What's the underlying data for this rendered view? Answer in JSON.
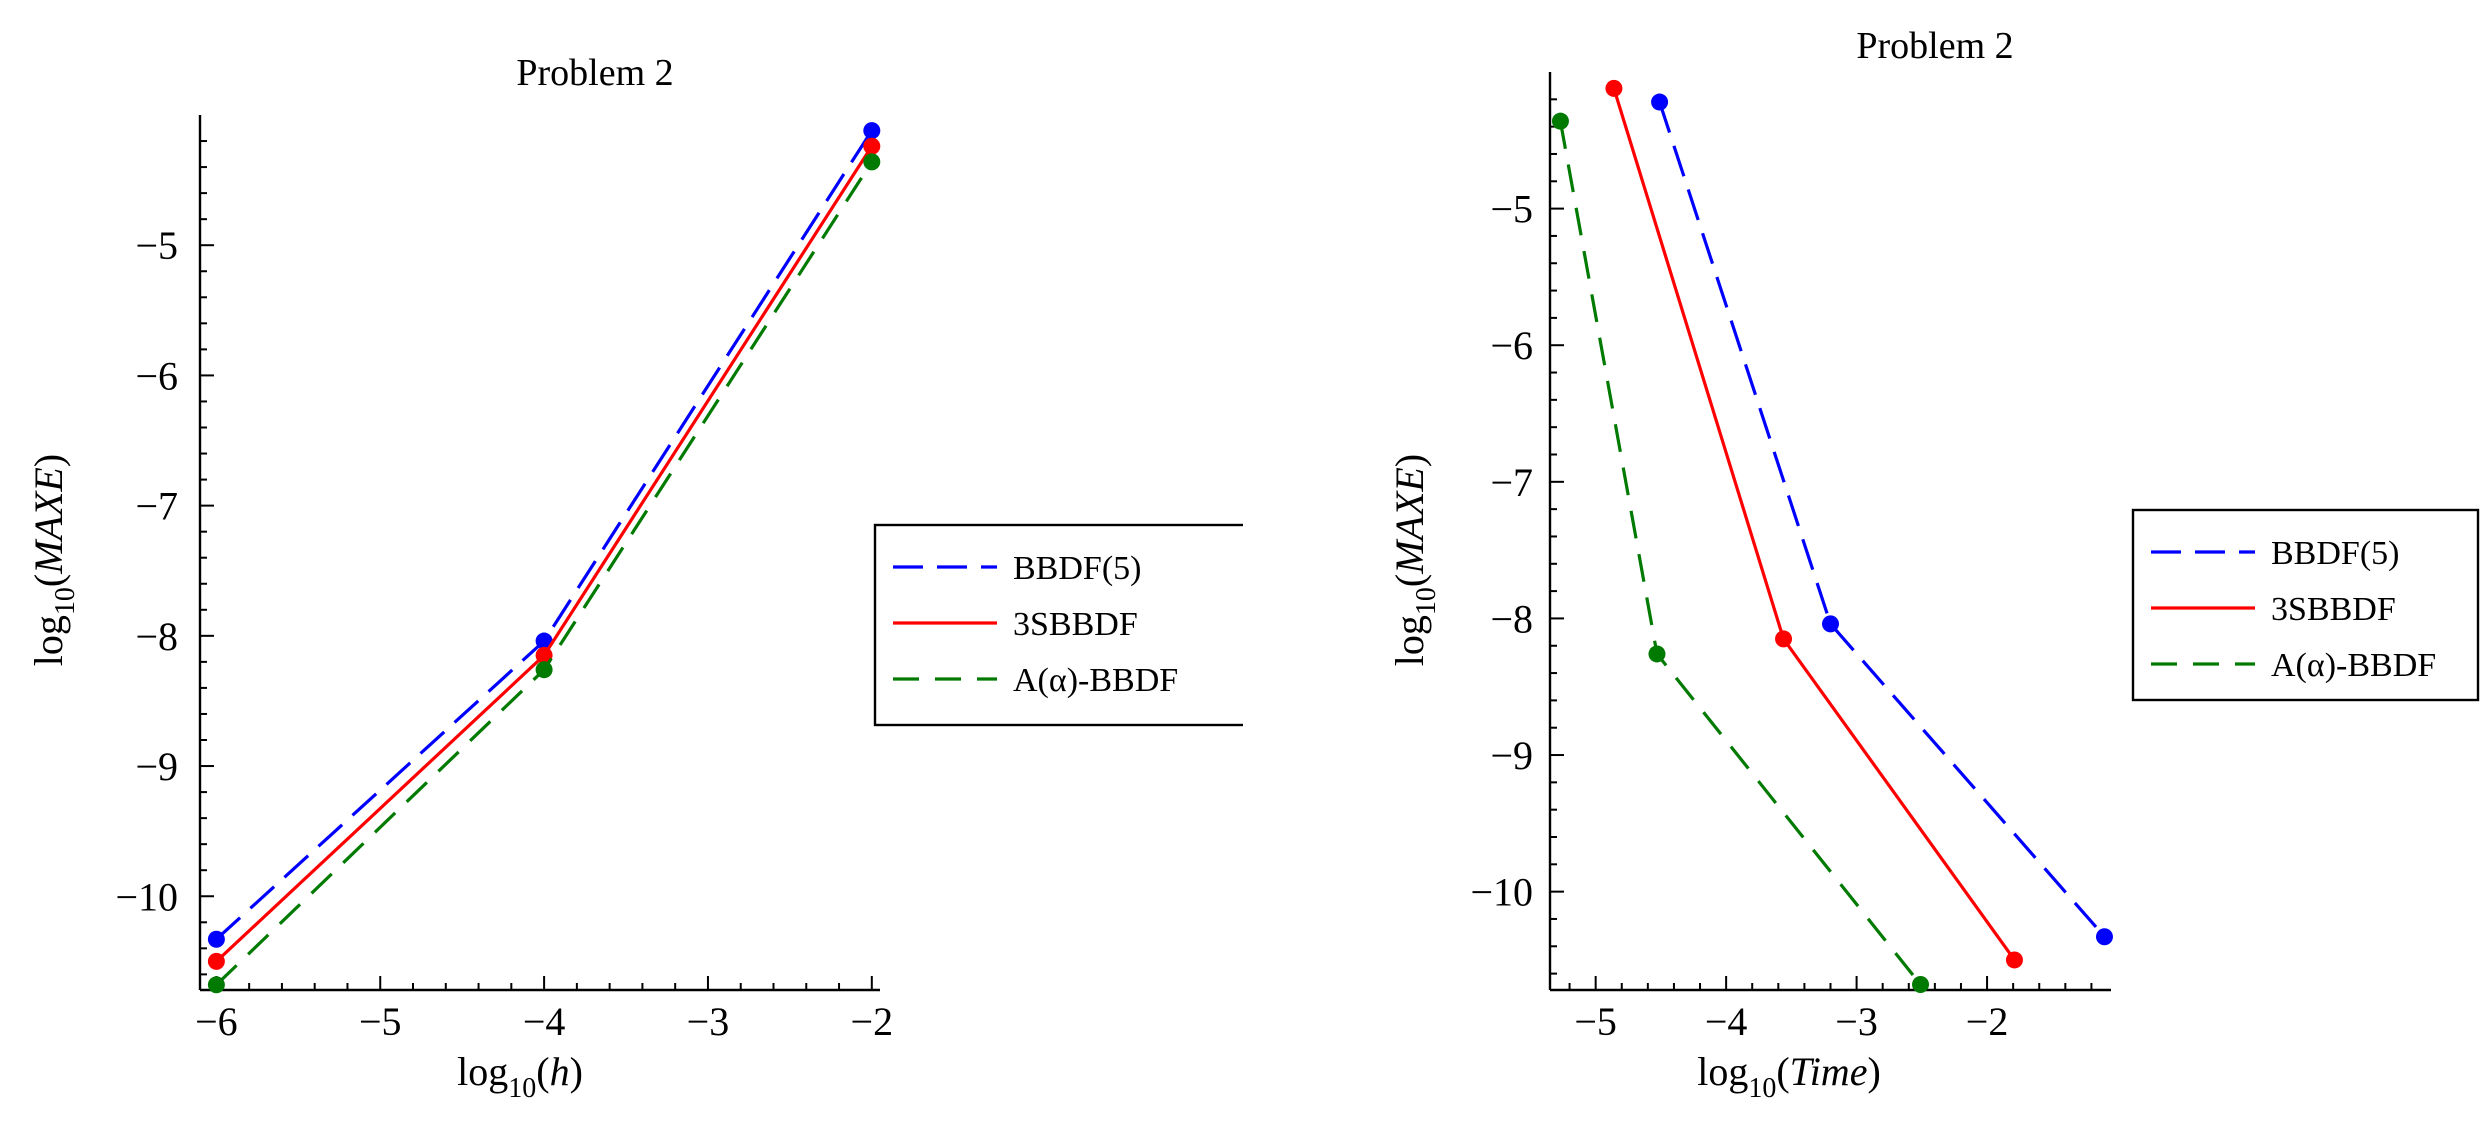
{
  "chart_data": [
    {
      "type": "line",
      "title": "Problem 2",
      "xlabel": {
        "base": "log",
        "sub": "10",
        "arg": "h"
      },
      "ylabel": {
        "base": "log",
        "sub": "10",
        "arg": "MAXE"
      },
      "xlim": [
        -6.1,
        -1.95
      ],
      "ylim": [
        -10.72,
        -4.0
      ],
      "xticks": [
        -6,
        -5,
        -4,
        -3,
        -2
      ],
      "xtick_labels": [
        "−6",
        "−5",
        "−4",
        "−3",
        "−2"
      ],
      "yticks": [
        -10,
        -9,
        -8,
        -7,
        -6,
        -5
      ],
      "ytick_labels": [
        "−10",
        "−9",
        "−8",
        "−7",
        "−6",
        "−5"
      ],
      "legend_position": "right",
      "series": [
        {
          "name": "BBDF(5)",
          "color": "#0000ff",
          "dash": "long-dash",
          "x": [
            -6,
            -4,
            -2
          ],
          "y": [
            -10.33,
            -8.04,
            -4.12
          ]
        },
        {
          "name": "3SBBDF",
          "color": "#ff0000",
          "dash": "solid",
          "x": [
            -6,
            -4,
            -2
          ],
          "y": [
            -10.5,
            -8.15,
            -4.24
          ]
        },
        {
          "name": "A(α)-BBDF",
          "color": "#007a00",
          "dash": "dash",
          "x": [
            -6,
            -4,
            -2
          ],
          "y": [
            -10.68,
            -8.26,
            -4.36
          ]
        }
      ]
    },
    {
      "type": "line",
      "title": "Problem 2",
      "xlabel": {
        "base": "log",
        "sub": "10",
        "arg": "Time"
      },
      "ylabel": {
        "base": "log",
        "sub": "10",
        "arg": "MAXE"
      },
      "xlim": [
        -5.35,
        -1.05
      ],
      "ylim": [
        -10.72,
        -4.0
      ],
      "xticks": [
        -5,
        -4,
        -3,
        -2
      ],
      "xtick_labels": [
        "−5",
        "−4",
        "−3",
        "−2"
      ],
      "yticks": [
        -10,
        -9,
        -8,
        -7,
        -6,
        -5
      ],
      "ytick_labels": [
        "−10",
        "−9",
        "−8",
        "−7",
        "−6",
        "−5"
      ],
      "legend_position": "right",
      "series": [
        {
          "name": "BBDF(5)",
          "color": "#0000ff",
          "dash": "long-dash",
          "x": [
            -4.51,
            -3.2,
            -1.1
          ],
          "y": [
            -4.22,
            -8.04,
            -10.33
          ]
        },
        {
          "name": "3SBBDF",
          "color": "#ff0000",
          "dash": "solid",
          "x": [
            -4.86,
            -3.56,
            -1.79
          ],
          "y": [
            -4.12,
            -8.15,
            -10.5
          ]
        },
        {
          "name": "A(α)-BBDF",
          "color": "#007a00",
          "dash": "dash",
          "x": [
            -5.27,
            -4.53,
            -2.51
          ],
          "y": [
            -4.36,
            -8.26,
            -10.68
          ]
        }
      ]
    }
  ]
}
